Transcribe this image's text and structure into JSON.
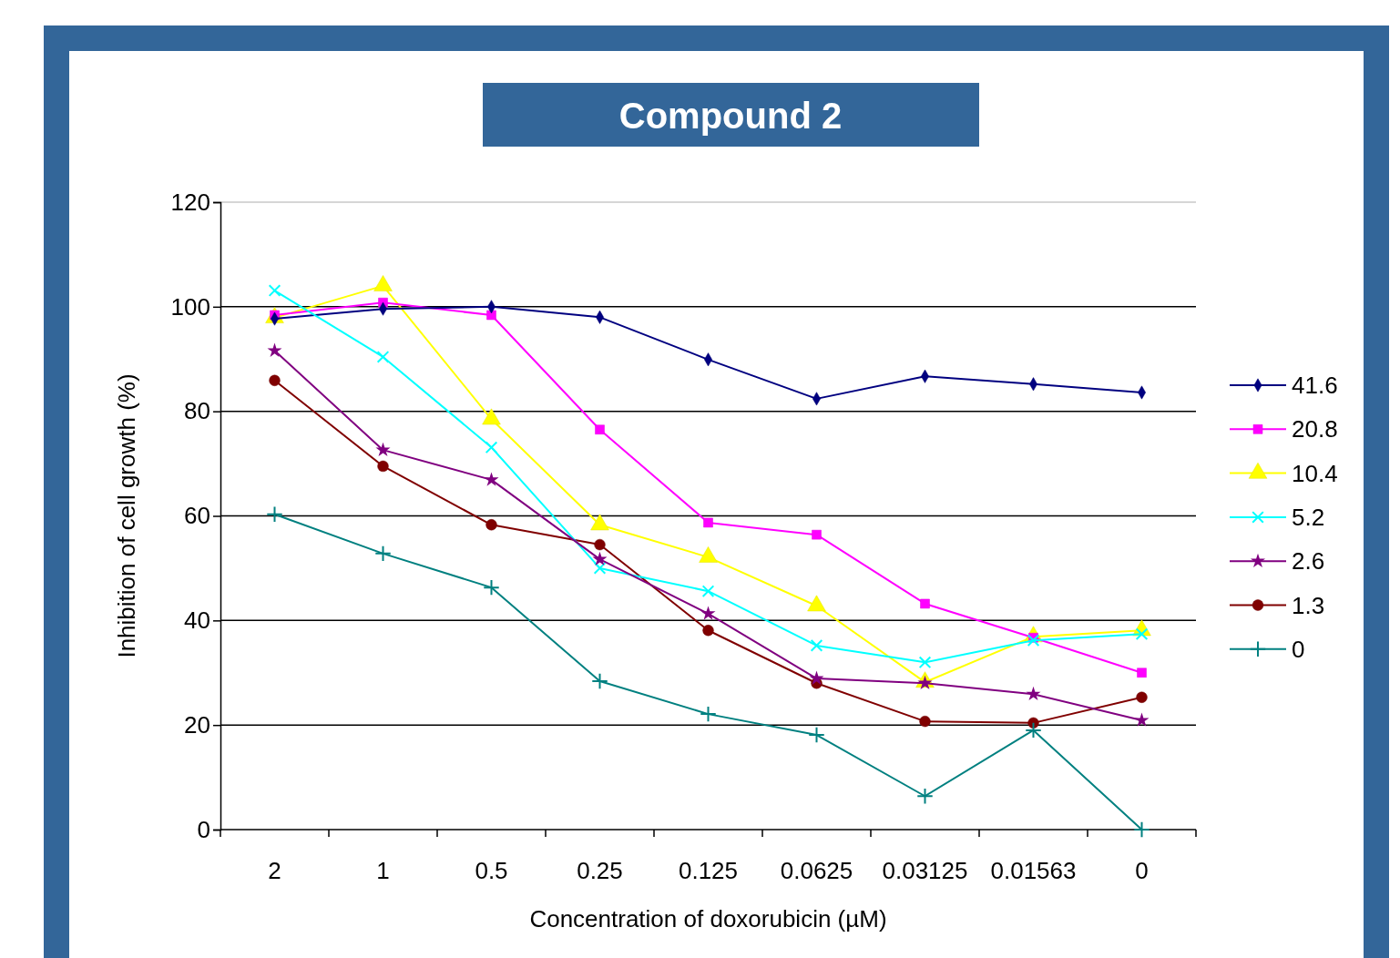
{
  "chart_data": {
    "type": "line",
    "title": "Compound 2",
    "xlabel": "Concentration of doxorubicin (µM)",
    "ylabel": "Inhibition of cell growth (%)",
    "categories": [
      "2",
      "1",
      "0.5",
      "0.25",
      "0.125",
      "0.0625",
      "0.03125",
      "0.01563",
      "0"
    ],
    "ylim": [
      0,
      120
    ],
    "yticks": [
      0,
      20,
      40,
      60,
      80,
      100,
      120
    ],
    "grid": "y",
    "legend": "right",
    "series": [
      {
        "name": "41.6",
        "color": "#000080",
        "marker": "diamond",
        "values": [
          97.7,
          99.6,
          100,
          98,
          89.9,
          82.4,
          86.7,
          85.2,
          83.6
        ]
      },
      {
        "name": "20.8",
        "color": "#ff00ff",
        "marker": "square",
        "values": [
          98.4,
          100.8,
          98.4,
          76.5,
          58.7,
          56.4,
          43.2,
          36.7,
          30
        ]
      },
      {
        "name": "10.4",
        "color": "#ffff00",
        "marker": "triangle",
        "values": [
          97.9,
          104,
          78.5,
          58.3,
          52.1,
          42.8,
          28.2,
          36.9,
          38.1
        ]
      },
      {
        "name": "5.2",
        "color": "#00ffff",
        "marker": "cross",
        "values": [
          103.1,
          90.4,
          73.1,
          50,
          45.6,
          35.2,
          32,
          36.2,
          37.4
        ]
      },
      {
        "name": "2.6",
        "color": "#800080",
        "marker": "star",
        "values": [
          91.6,
          72.6,
          66.9,
          51.7,
          41.3,
          28.9,
          28,
          25.9,
          20.9
        ]
      },
      {
        "name": "1.3",
        "color": "#800000",
        "marker": "circle",
        "values": [
          85.9,
          69.5,
          58.3,
          54.5,
          38.1,
          28,
          20.7,
          20.4,
          25.3
        ]
      },
      {
        "name": "0",
        "color": "#008080",
        "marker": "cross",
        "values": [
          60.3,
          52.8,
          46.3,
          28.4,
          22.1,
          18.1,
          6.4,
          19,
          0
        ]
      }
    ]
  }
}
